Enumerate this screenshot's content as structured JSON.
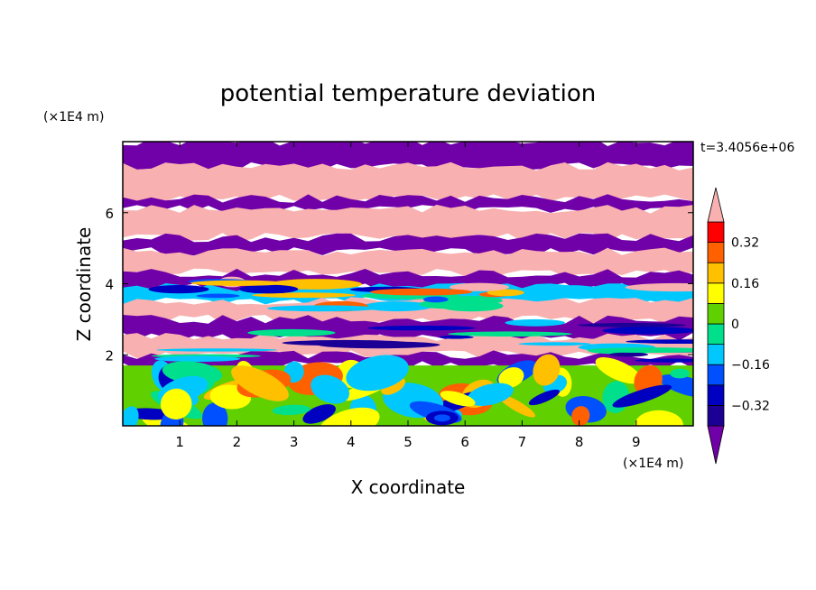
{
  "chart_data": {
    "type": "heatmap",
    "title": "potential temperature deviation",
    "xlabel": "X coordinate",
    "ylabel": "Z coordinate",
    "x_unit": "(×1E4 m)",
    "y_unit": "(×1E4 m)",
    "time_label": "t=3.4056e+06",
    "xlim": [
      0,
      10
    ],
    "ylim": [
      0,
      8
    ],
    "x_ticks": [
      "1",
      "2",
      "3",
      "4",
      "5",
      "6",
      "7",
      "8",
      "9"
    ],
    "y_ticks": [
      "2",
      "4",
      "6"
    ],
    "colorbar": {
      "levels": [
        -0.4,
        -0.32,
        -0.24,
        -0.16,
        -0.08,
        0,
        0.08,
        0.16,
        0.24,
        0.32,
        0.4
      ],
      "tick_labels": [
        "0.32",
        "0.16",
        "0",
        "−0.16",
        "−0.32"
      ],
      "tick_values": [
        0.32,
        0.16,
        0,
        -0.16,
        -0.32
      ],
      "colors": [
        "#1c0096",
        "#0000c0",
        "#0050ff",
        "#00c8ff",
        "#00e08c",
        "#60d000",
        "#ffff00",
        "#ffc000",
        "#ff6000",
        "#ff0000"
      ],
      "under_color": "#7000a8",
      "over_color": "#f8b0b0",
      "extend": "both"
    },
    "bands": [
      {
        "z0": 7.3,
        "z1": 8.0,
        "level": "under"
      },
      {
        "z0": 6.4,
        "z1": 7.3,
        "level": "over"
      },
      {
        "z0": 6.1,
        "z1": 6.4,
        "level": "under"
      },
      {
        "z0": 5.3,
        "z1": 6.1,
        "level": "over"
      },
      {
        "z0": 4.9,
        "z1": 5.3,
        "level": "under"
      },
      {
        "z0": 4.3,
        "z1": 4.9,
        "level": "over"
      },
      {
        "z0": 3.9,
        "z1": 4.3,
        "level": "under"
      },
      {
        "z0": 3.5,
        "z1": 3.9,
        "level": "mixed"
      },
      {
        "z0": 3.0,
        "z1": 3.5,
        "level": "over"
      },
      {
        "z0": 2.5,
        "z1": 3.0,
        "level": "under"
      },
      {
        "z0": 2.0,
        "z1": 2.5,
        "level": "over"
      },
      {
        "z0": 1.7,
        "z1": 2.0,
        "level": "under"
      },
      {
        "z0": 0.0,
        "z1": 1.7,
        "level": "turbulent"
      }
    ]
  }
}
